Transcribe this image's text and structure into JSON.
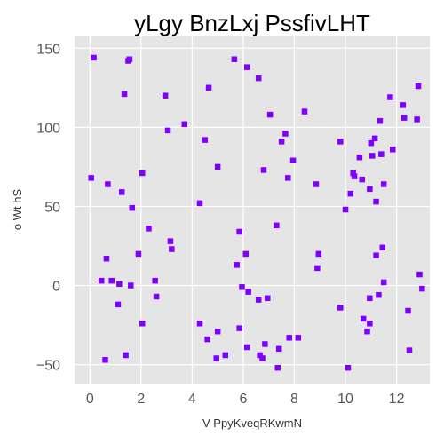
{
  "chart_data": {
    "type": "scatter",
    "title": "yLgy BnzLxj  PssfivLHT",
    "xlabel": "V PpyKveqRKwmN",
    "ylabel": "o Wt hS",
    "xlim": [
      -0.6,
      13.3
    ],
    "ylim": [
      -62,
      158
    ],
    "xticks": [
      0,
      2,
      4,
      6,
      8,
      10,
      12
    ],
    "yticks": [
      -50,
      0,
      50,
      100,
      150
    ],
    "ytick_labels": [
      "−50",
      "0",
      "50",
      "100",
      "150"
    ],
    "grid": true,
    "marker": "square",
    "color": "#7f00ff",
    "background": "#e5e5e5",
    "points": [
      [
        0.05,
        68
      ],
      [
        0.15,
        144
      ],
      [
        0.45,
        3
      ],
      [
        0.6,
        -47
      ],
      [
        0.65,
        17
      ],
      [
        0.7,
        64
      ],
      [
        0.85,
        3
      ],
      [
        1.1,
        -12
      ],
      [
        1.15,
        1
      ],
      [
        1.25,
        59
      ],
      [
        1.35,
        121
      ],
      [
        1.4,
        -44
      ],
      [
        1.5,
        142
      ],
      [
        1.55,
        143
      ],
      [
        1.6,
        0
      ],
      [
        1.65,
        49
      ],
      [
        1.9,
        20
      ],
      [
        2.05,
        -24
      ],
      [
        2.05,
        71
      ],
      [
        2.3,
        36
      ],
      [
        2.55,
        3
      ],
      [
        2.6,
        -7
      ],
      [
        2.95,
        120
      ],
      [
        3.05,
        98
      ],
      [
        3.15,
        28
      ],
      [
        3.2,
        23
      ],
      [
        3.7,
        102
      ],
      [
        4.3,
        -24
      ],
      [
        4.3,
        52
      ],
      [
        4.5,
        92
      ],
      [
        4.6,
        -34
      ],
      [
        4.65,
        125
      ],
      [
        4.95,
        -46
      ],
      [
        5.0,
        75
      ],
      [
        5.0,
        -29
      ],
      [
        5.3,
        -44
      ],
      [
        5.65,
        143
      ],
      [
        5.75,
        13
      ],
      [
        5.85,
        -27
      ],
      [
        5.85,
        34
      ],
      [
        5.95,
        -1
      ],
      [
        6.1,
        20
      ],
      [
        6.15,
        -39
      ],
      [
        6.15,
        138
      ],
      [
        6.2,
        -4
      ],
      [
        6.6,
        131
      ],
      [
        6.6,
        -9
      ],
      [
        6.65,
        -44
      ],
      [
        6.75,
        -46
      ],
      [
        6.8,
        73
      ],
      [
        6.85,
        -37
      ],
      [
        6.95,
        -8
      ],
      [
        7.05,
        108
      ],
      [
        7.3,
        38
      ],
      [
        7.35,
        -52
      ],
      [
        7.4,
        -40
      ],
      [
        7.5,
        91
      ],
      [
        7.65,
        96
      ],
      [
        7.75,
        68
      ],
      [
        7.8,
        -33
      ],
      [
        7.95,
        79
      ],
      [
        8.15,
        -33
      ],
      [
        8.4,
        110
      ],
      [
        8.85,
        64
      ],
      [
        8.9,
        11
      ],
      [
        8.95,
        20
      ],
      [
        9.8,
        91
      ],
      [
        9.8,
        -14
      ],
      [
        10.0,
        48
      ],
      [
        10.1,
        -52
      ],
      [
        10.2,
        58
      ],
      [
        10.3,
        71
      ],
      [
        10.35,
        69
      ],
      [
        10.55,
        81
      ],
      [
        10.65,
        67
      ],
      [
        10.7,
        -21
      ],
      [
        10.85,
        -29
      ],
      [
        10.95,
        -24
      ],
      [
        10.95,
        61
      ],
      [
        10.95,
        -8
      ],
      [
        11.0,
        90
      ],
      [
        11.05,
        82
      ],
      [
        11.15,
        93
      ],
      [
        11.2,
        53
      ],
      [
        11.2,
        19
      ],
      [
        11.3,
        -6
      ],
      [
        11.35,
        104
      ],
      [
        11.4,
        83
      ],
      [
        11.45,
        24
      ],
      [
        11.5,
        64
      ],
      [
        11.5,
        2
      ],
      [
        11.75,
        119
      ],
      [
        11.85,
        86
      ],
      [
        12.25,
        114
      ],
      [
        12.3,
        106
      ],
      [
        12.45,
        -16
      ],
      [
        12.5,
        -41
      ],
      [
        12.8,
        105
      ],
      [
        12.85,
        126
      ],
      [
        12.9,
        7
      ],
      [
        13.0,
        -2
      ]
    ]
  }
}
